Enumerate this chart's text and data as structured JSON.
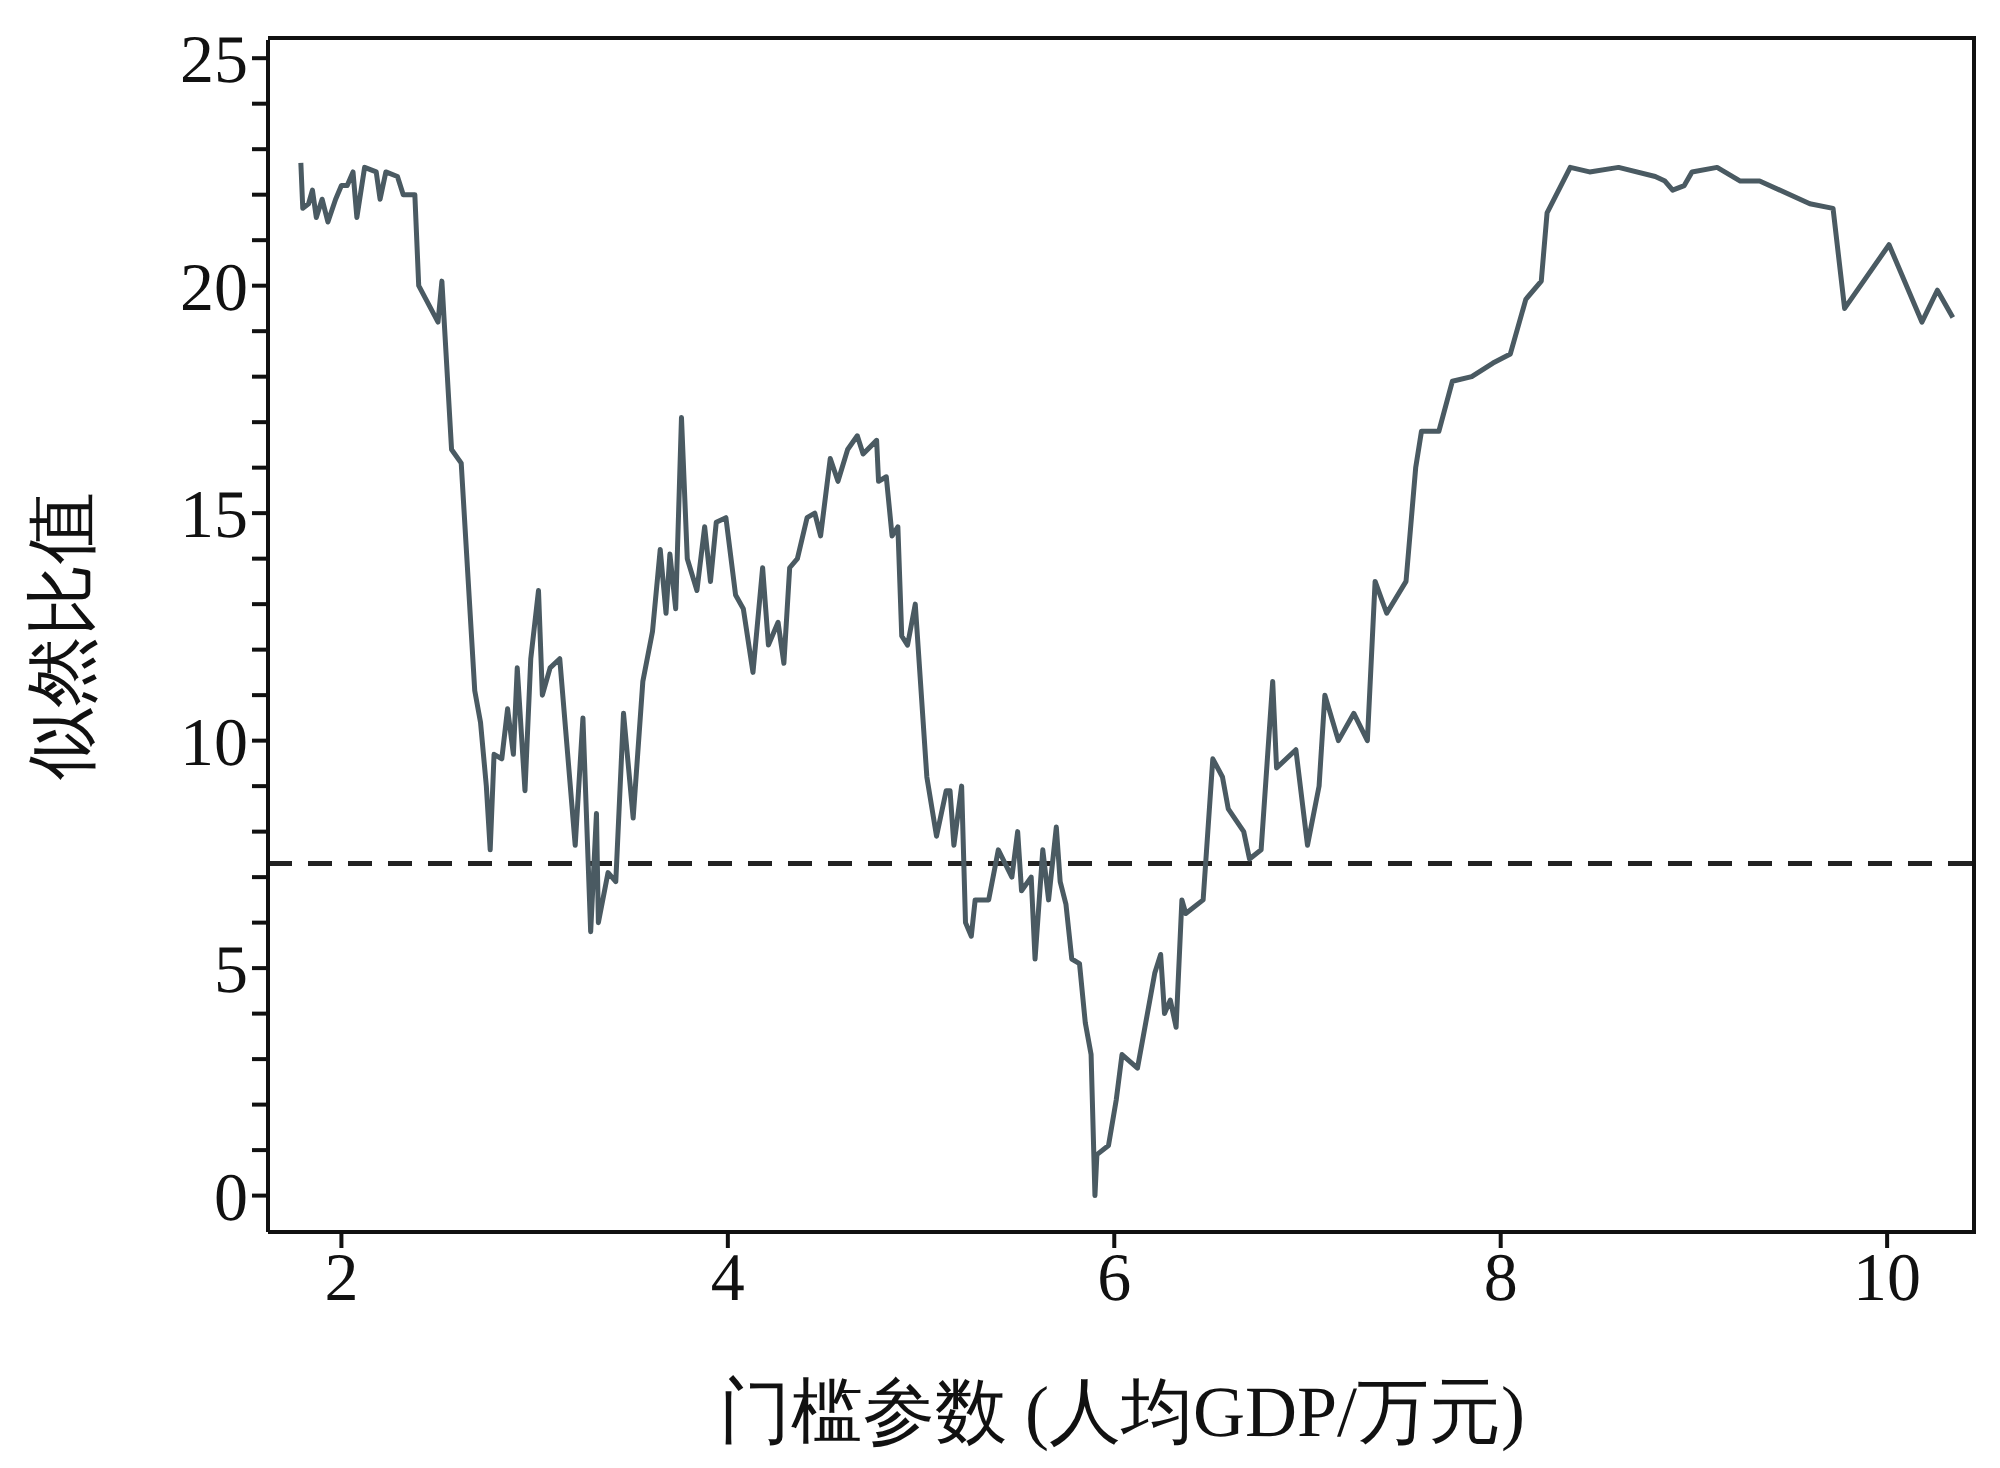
{
  "chart_data": {
    "type": "line",
    "xlabel": "门槛参数 (人均GDP/万元)",
    "ylabel": "似然比值",
    "xlim": [
      1.62,
      10.46
    ],
    "ylim": [
      -0.8,
      25.4
    ],
    "xticks": [
      2,
      4,
      6,
      8,
      10
    ],
    "yticks": [
      0,
      {
        "value": 1,
        "label": null
      },
      {
        "value": 2,
        "label": null
      },
      {
        "value": 3,
        "label": null
      },
      {
        "value": 4,
        "label": null
      },
      5,
      {
        "value": 6,
        "label": null
      },
      {
        "value": 7,
        "label": null
      },
      {
        "value": 8,
        "label": null
      },
      {
        "value": 9,
        "label": null
      },
      10,
      {
        "value": 11,
        "label": null
      },
      {
        "value": 12,
        "label": null
      },
      {
        "value": 13,
        "label": null
      },
      {
        "value": 14,
        "label": null
      },
      15,
      {
        "value": 16,
        "label": null
      },
      {
        "value": 17,
        "label": null
      },
      {
        "value": 18,
        "label": null
      },
      {
        "value": 19,
        "label": null
      },
      20,
      {
        "value": 21,
        "label": null
      },
      {
        "value": 22,
        "label": null
      },
      {
        "value": 23,
        "label": null
      },
      {
        "value": 24,
        "label": null
      },
      25
    ],
    "grid": false,
    "legend": false,
    "marker": "none",
    "line_style": "solid",
    "ref_lines": [
      {
        "axis": "y",
        "value": 7.3,
        "color": "#222222",
        "line_style": "dashed"
      }
    ],
    "series": [
      {
        "color": "#4a5a62",
        "x": [
          1.79,
          1.8,
          1.83,
          1.85,
          1.87,
          1.9,
          1.93,
          1.97,
          2.0,
          2.03,
          2.06,
          2.08,
          2.12,
          2.18,
          2.2,
          2.23,
          2.29,
          2.32,
          2.38,
          2.4,
          2.5,
          2.52,
          2.57,
          2.62,
          2.69,
          2.72,
          2.75,
          2.77,
          2.79,
          2.83,
          2.86,
          2.89,
          2.91,
          2.95,
          2.98,
          3.02,
          3.04,
          3.08,
          3.13,
          3.21,
          3.25,
          3.29,
          3.32,
          3.33,
          3.38,
          3.42,
          3.46,
          3.51,
          3.56,
          3.61,
          3.65,
          3.68,
          3.7,
          3.73,
          3.76,
          3.79,
          3.84,
          3.88,
          3.91,
          3.94,
          3.99,
          4.04,
          4.08,
          4.13,
          4.18,
          4.21,
          4.26,
          4.29,
          4.32,
          4.36,
          4.41,
          4.45,
          4.48,
          4.53,
          4.57,
          4.62,
          4.67,
          4.7,
          4.77,
          4.78,
          4.82,
          4.85,
          4.88,
          4.9,
          4.93,
          4.97,
          5.03,
          5.08,
          5.13,
          5.15,
          5.17,
          5.21,
          5.23,
          5.26,
          5.28,
          5.35,
          5.4,
          5.47,
          5.5,
          5.52,
          5.57,
          5.59,
          5.63,
          5.66,
          5.7,
          5.72,
          5.75,
          5.78,
          5.82,
          5.85,
          5.88,
          5.9,
          5.91,
          5.97,
          6.01,
          6.04,
          6.12,
          6.21,
          6.24,
          6.26,
          6.29,
          6.32,
          6.35,
          6.37,
          6.46,
          6.51,
          6.56,
          6.59,
          6.67,
          6.7,
          6.76,
          6.82,
          6.84,
          6.94,
          7.0,
          7.06,
          7.09,
          7.16,
          7.24,
          7.31,
          7.35,
          7.41,
          7.51,
          7.56,
          7.59,
          7.68,
          7.75,
          7.85,
          7.96,
          8.05,
          8.13,
          8.21,
          8.24,
          8.36,
          8.46,
          8.61,
          8.8,
          8.85,
          8.89,
          8.95,
          8.99,
          9.12,
          9.24,
          9.34,
          9.6,
          9.72,
          9.78,
          10.01,
          10.18,
          10.26,
          10.34
        ],
        "values": [
          22.7,
          21.7,
          21.8,
          22.1,
          21.5,
          21.9,
          21.4,
          21.9,
          22.2,
          22.2,
          22.5,
          21.5,
          22.6,
          22.5,
          21.9,
          22.5,
          22.4,
          22.0,
          22.0,
          20.0,
          19.2,
          20.1,
          16.4,
          16.1,
          11.1,
          10.4,
          9.0,
          7.6,
          9.7,
          9.6,
          10.7,
          9.7,
          11.6,
          8.9,
          11.8,
          13.3,
          11.0,
          11.6,
          11.8,
          7.7,
          10.5,
          5.8,
          8.4,
          6.0,
          7.1,
          6.9,
          10.6,
          8.3,
          11.3,
          12.4,
          14.2,
          12.8,
          14.1,
          12.9,
          17.1,
          14.0,
          13.3,
          14.7,
          13.5,
          14.8,
          14.9,
          13.2,
          12.9,
          11.5,
          13.8,
          12.1,
          12.6,
          11.7,
          13.8,
          14.0,
          14.9,
          15.0,
          14.5,
          16.2,
          15.7,
          16.4,
          16.7,
          16.3,
          16.6,
          15.7,
          15.8,
          14.5,
          14.7,
          12.3,
          12.1,
          13.0,
          9.2,
          7.9,
          8.9,
          8.9,
          7.7,
          9.0,
          6.0,
          5.7,
          6.5,
          6.5,
          7.6,
          7.0,
          8.0,
          6.7,
          7.0,
          5.2,
          7.6,
          6.5,
          8.1,
          6.9,
          6.4,
          5.2,
          5.1,
          3.8,
          3.1,
          0.0,
          0.9,
          1.1,
          2.1,
          3.1,
          2.8,
          4.9,
          5.3,
          4.0,
          4.3,
          3.7,
          6.5,
          6.2,
          6.5,
          9.6,
          9.2,
          8.5,
          8.0,
          7.4,
          7.6,
          11.3,
          9.4,
          9.8,
          7.7,
          9.0,
          11.0,
          10.0,
          10.6,
          10.0,
          13.5,
          12.8,
          13.5,
          16.0,
          16.8,
          16.8,
          17.9,
          18.0,
          18.3,
          18.5,
          19.7,
          20.1,
          21.6,
          22.6,
          22.5,
          22.6,
          22.4,
          22.3,
          22.1,
          22.2,
          22.5,
          22.6,
          22.3,
          22.3,
          21.8,
          21.7,
          19.5,
          20.9,
          19.2,
          19.9,
          19.3
        ]
      }
    ]
  }
}
